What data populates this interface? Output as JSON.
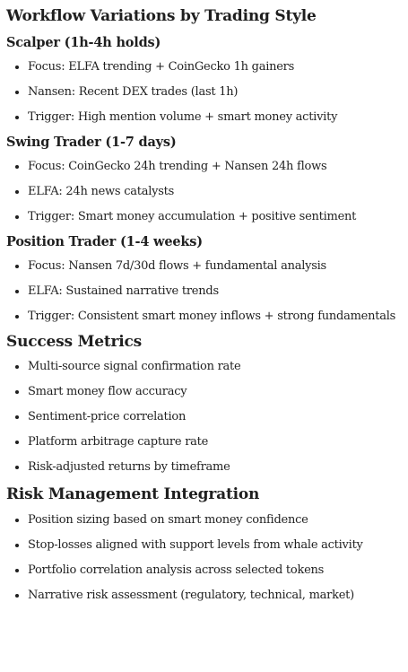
{
  "title": "Workflow Variations by Trading Style",
  "scalper": {
    "heading": "Scalper (1h-4h holds)",
    "items": [
      "Focus: ELFA trending + CoinGecko 1h gainers",
      "Nansen: Recent DEX trades (last 1h)",
      "Trigger: High mention volume + smart money activity"
    ]
  },
  "swing": {
    "heading": "Swing Trader (1-7 days)",
    "items": [
      "Focus: CoinGecko 24h trending + Nansen 24h flows",
      "ELFA: 24h news catalysts",
      "Trigger: Smart money accumulation + positive sentiment"
    ]
  },
  "position": {
    "heading": "Position Trader (1-4 weeks)",
    "items": [
      "Focus: Nansen 7d/30d flows + fundamental analysis",
      "ELFA: Sustained narrative trends",
      "Trigger: Consistent smart money inflows + strong fundamentals"
    ]
  },
  "metrics": {
    "heading": "Success Metrics",
    "items": [
      "Multi-source signal confirmation rate",
      "Smart money flow accuracy",
      "Sentiment-price correlation",
      "Platform arbitrage capture rate",
      "Risk-adjusted returns by timeframe"
    ]
  },
  "risk": {
    "heading": "Risk Management Integration",
    "items": [
      "Position sizing based on smart money confidence",
      "Stop-losses aligned with support levels from whale activity",
      "Portfolio correlation analysis across selected tokens",
      "Narrative risk assessment (regulatory, technical, market)"
    ]
  }
}
